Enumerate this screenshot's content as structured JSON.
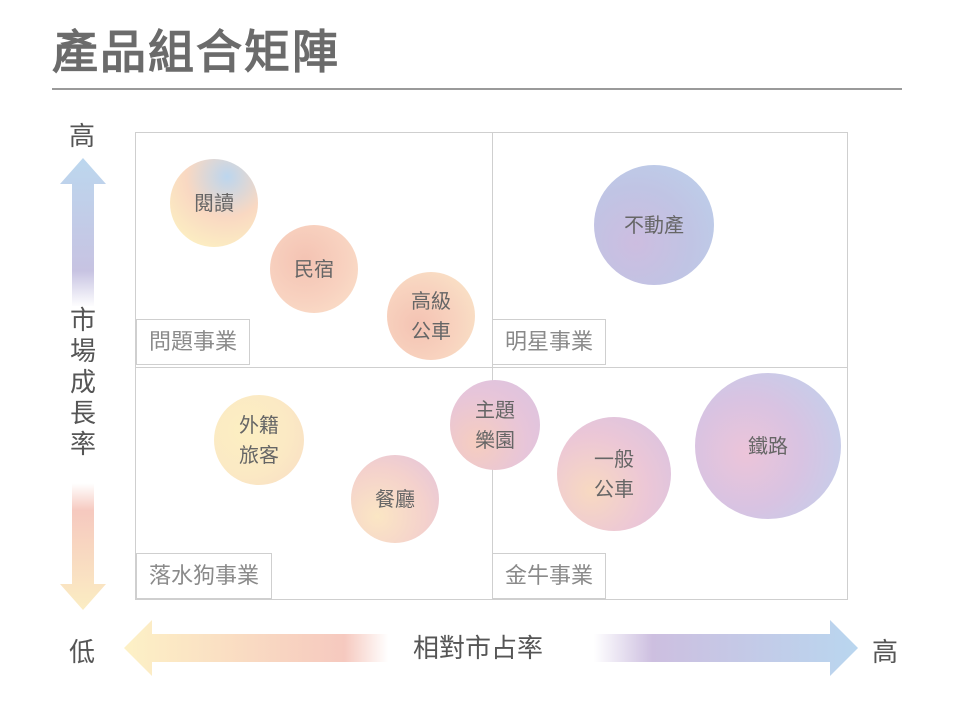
{
  "title": "產品組合矩陣",
  "axes": {
    "y_title": "市場成長率",
    "y_high": "高",
    "x_title": "相對市占率",
    "x_low": "低",
    "x_high": "高"
  },
  "quadrants": {
    "question": "問題事業",
    "star": "明星事業",
    "dog": "落水狗事業",
    "cash_cow": "金牛事業"
  },
  "bubbles": {
    "reading": "閱讀",
    "bnb": "民宿",
    "premium_bus": "高級\n公車",
    "real_estate": "不動產",
    "theme_park": "主題\n樂園",
    "foreign_travel": "外籍\n旅客",
    "catering": "餐廳",
    "general_bus": "一般\n公車",
    "railway": "鐵路"
  }
}
